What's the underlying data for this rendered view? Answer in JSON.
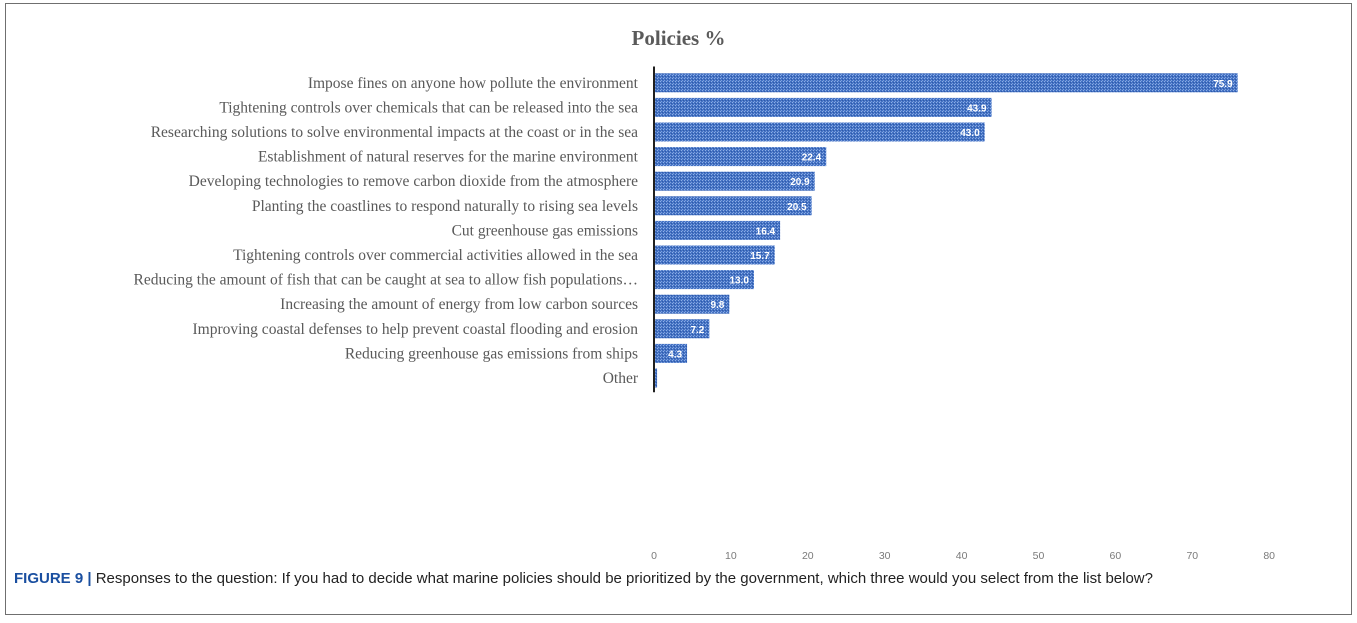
{
  "chart_data": {
    "type": "bar",
    "orientation": "horizontal",
    "title": "Policies %",
    "categories": [
      "Impose fines on anyone how pollute the environment",
      "Tightening controls over chemicals that can be released into the sea",
      "Researching solutions to solve environmental impacts at the coast or in the sea",
      "Establishment of natural reserves for the marine environment",
      "Developing technologies to remove carbon dioxide from the atmosphere",
      "Planting the coastlines to respond naturally to rising sea levels",
      "Cut greenhouse gas emissions",
      "Tightening controls over commercial activities allowed in the sea",
      "Reducing the amount of fish that can be caught at sea to allow fish populations…",
      "Increasing the amount of energy from low carbon sources",
      "Improving coastal defenses to help prevent coastal flooding and erosion",
      "Reducing greenhouse gas emissions from ships",
      "Other"
    ],
    "values": [
      75.9,
      43.9,
      43.0,
      22.4,
      20.9,
      20.5,
      16.4,
      15.7,
      13.0,
      9.8,
      7.2,
      4.3,
      0.4
    ],
    "value_labels": [
      "75.9",
      "43.9",
      "43.0",
      "22.4",
      "20.9",
      "20.5",
      "16.4",
      "15.7",
      "13.0",
      "9.8",
      "7.2",
      "4.3",
      ""
    ],
    "xlim": [
      0,
      80
    ],
    "xticks": [
      0,
      10,
      20,
      30,
      40,
      50,
      60,
      70,
      80
    ],
    "grid": false,
    "legend": "none",
    "bar_color": "#4472c4"
  },
  "caption": {
    "lead": "FIGURE 9 |",
    "text": " Responses to the question: If you had to decide what marine policies should be prioritized by the government, which three would you select from the list below?"
  }
}
